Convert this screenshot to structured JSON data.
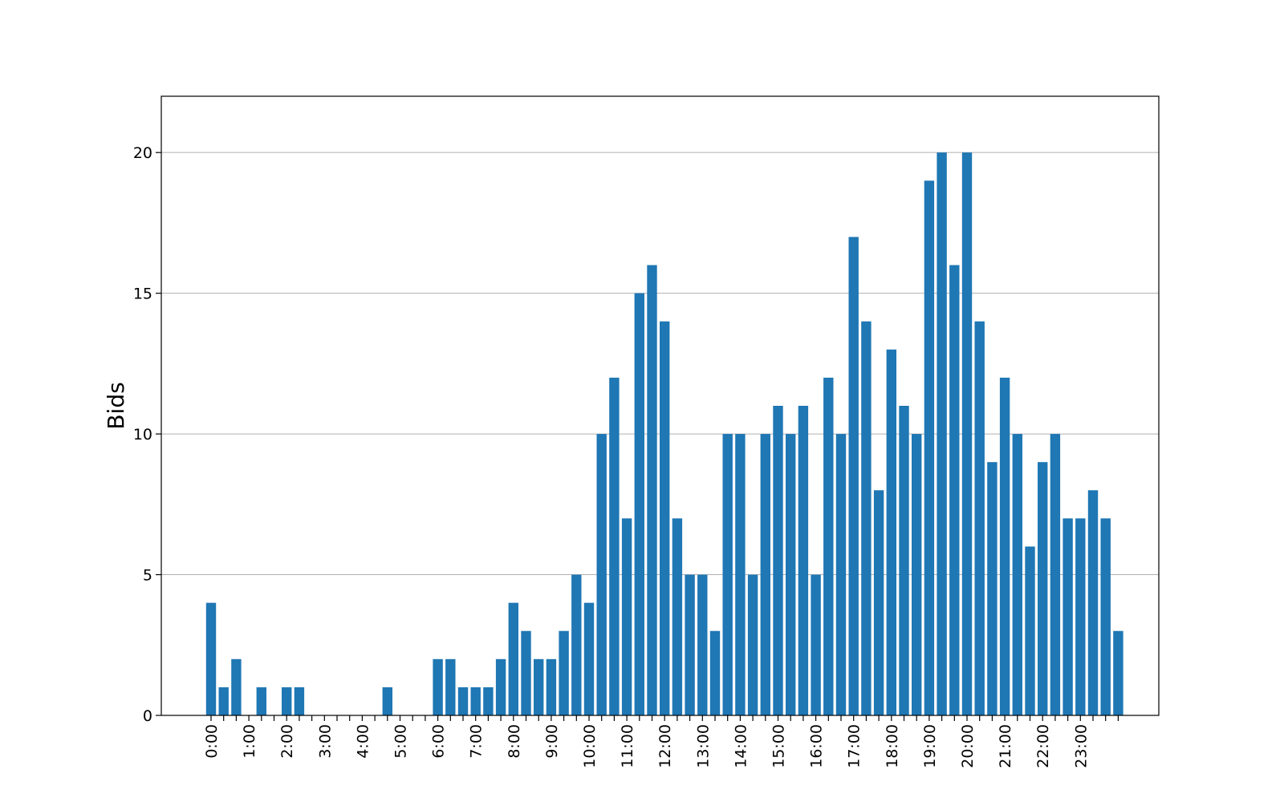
{
  "chart_data": {
    "type": "bar",
    "title": "",
    "xlabel": "",
    "ylabel": "Bids",
    "ylim": [
      0,
      22
    ],
    "yticks": [
      0,
      5,
      10,
      15,
      20
    ],
    "grid": "y",
    "bar_color": "#1f77b4",
    "x_tick_labels": [
      "0:00",
      "1:00",
      "2:00",
      "3:00",
      "4:00",
      "5:00",
      "6:00",
      "7:00",
      "8:00",
      "9:00",
      "10:00",
      "11:00",
      "12:00",
      "13:00",
      "14:00",
      "15:00",
      "16:00",
      "17:00",
      "18:00",
      "19:00",
      "20:00",
      "21:00",
      "22:00",
      "23:00"
    ],
    "values": [
      4,
      1,
      2,
      0,
      1,
      0,
      1,
      1,
      0,
      0,
      0,
      0,
      0,
      0,
      1,
      0,
      0,
      0,
      2,
      2,
      1,
      1,
      1,
      2,
      4,
      3,
      2,
      2,
      3,
      5,
      4,
      10,
      12,
      7,
      15,
      16,
      14,
      7,
      5,
      5,
      3,
      10,
      10,
      5,
      10,
      11,
      10,
      11,
      5,
      12,
      10,
      17,
      14,
      8,
      13,
      11,
      10,
      19,
      20,
      16,
      20,
      14,
      9,
      12,
      10,
      6,
      9,
      10,
      7,
      7,
      8,
      7,
      3
    ]
  }
}
